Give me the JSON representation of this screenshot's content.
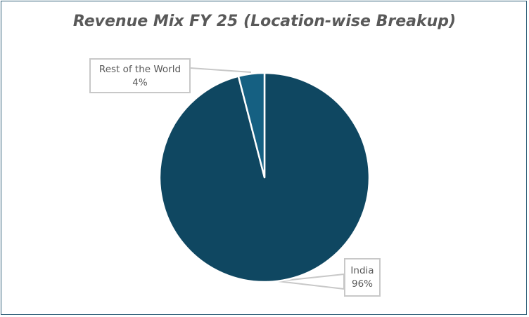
{
  "chart_data": {
    "type": "pie",
    "title": "Revenue Mix FY 25 (Location-wise Breakup)",
    "slices": [
      {
        "name": "India",
        "value": 96,
        "label": "96%",
        "color": "#0f4761"
      },
      {
        "name": "Rest of the World",
        "value": 4,
        "label": "4%",
        "color": "#156082"
      }
    ],
    "start_angle": "top, clockwise",
    "legend": "none",
    "data_labels": "callouts with leader lines"
  }
}
